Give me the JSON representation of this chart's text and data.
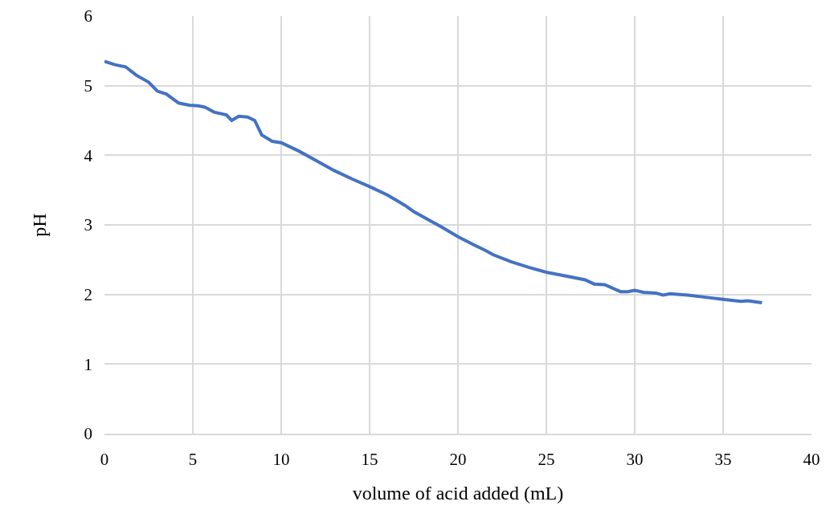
{
  "chart_data": {
    "type": "line",
    "xlabel": "volume of acid added (mL)",
    "ylabel": "pH",
    "x": [
      0,
      0.6,
      1.2,
      1.8,
      2.5,
      3,
      3.5,
      4.2,
      4.8,
      5.3,
      5.7,
      6.2,
      6.9,
      7.2,
      7.6,
      8.1,
      8.5,
      8.9,
      9.5,
      10,
      10.5,
      11,
      12,
      13,
      14,
      15,
      16,
      17,
      17.5,
      18.5,
      19,
      20,
      21,
      21.5,
      22,
      23,
      24,
      25,
      26,
      27.2,
      27.7,
      28.3,
      29.2,
      29.6,
      30,
      30.5,
      31.2,
      31.6,
      32,
      33,
      34,
      35,
      36,
      36.4,
      37.2
    ],
    "series": [
      {
        "color": "#4472c4",
        "values": [
          5.35,
          5.3,
          5.27,
          5.15,
          5.05,
          4.92,
          4.88,
          4.75,
          4.72,
          4.71,
          4.69,
          4.62,
          4.58,
          4.5,
          4.56,
          4.55,
          4.5,
          4.29,
          4.2,
          4.18,
          4.12,
          4.06,
          3.92,
          3.78,
          3.66,
          3.55,
          3.43,
          3.28,
          3.19,
          3.05,
          2.98,
          2.83,
          2.7,
          2.64,
          2.57,
          2.47,
          2.39,
          2.32,
          2.27,
          2.21,
          2.15,
          2.14,
          2.04,
          2.04,
          2.06,
          2.03,
          2.02,
          1.99,
          2.01,
          1.99,
          1.96,
          1.93,
          1.9,
          1.91,
          1.88
        ]
      }
    ],
    "xlim": [
      0,
      40
    ],
    "xticks": [
      0,
      5,
      10,
      15,
      20,
      25,
      30,
      35,
      40
    ],
    "ylim": [
      0,
      6
    ],
    "yticks": [
      0,
      1,
      2,
      3,
      4,
      5,
      6
    ],
    "grid": true,
    "legend": false,
    "marker": "none",
    "line_style": "solid"
  }
}
